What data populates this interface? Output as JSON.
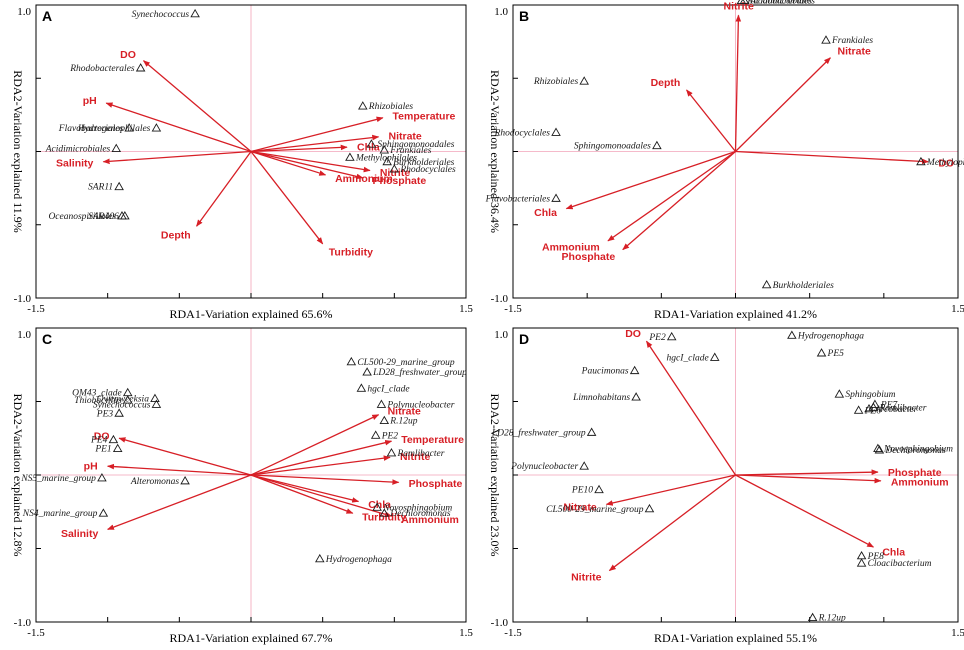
{
  "colors": {
    "vector": "#d71f26",
    "crosshair": "#f2a3b8",
    "frame": "#000000",
    "species": "#1a1a1a"
  },
  "chart_data": [
    {
      "type": "scatter",
      "panel_label": "A",
      "xlabel": "RDA1-Variation explained 65.6%",
      "ylabel": "RDA2-Variation explained 11.9%",
      "x_tick_labels": [
        "-1.5",
        "1.5"
      ],
      "y_tick_labels": [
        "1.0",
        "-1.0"
      ],
      "xlim": [
        -1.5,
        1.5
      ],
      "ylim": [
        -1.0,
        1.0
      ],
      "vectors": [
        {
          "label": "DO",
          "x": -0.75,
          "y": 0.62
        },
        {
          "label": "pH",
          "x": -1.01,
          "y": 0.33
        },
        {
          "label": "Salinity",
          "x": -1.03,
          "y": -0.07
        },
        {
          "label": "Depth",
          "x": -0.38,
          "y": -0.51
        },
        {
          "label": "Turbidity",
          "x": 0.5,
          "y": -0.63
        },
        {
          "label": "Ammonium",
          "x": 0.52,
          "y": -0.16
        },
        {
          "label": "Phosphate",
          "x": 0.78,
          "y": -0.18
        },
        {
          "label": "Nitrite",
          "x": 0.83,
          "y": -0.13
        },
        {
          "label": "Chla",
          "x": 0.67,
          "y": 0.03
        },
        {
          "label": "Nitrate",
          "x": 0.89,
          "y": 0.1
        },
        {
          "label": "Temperature",
          "x": 0.92,
          "y": 0.23
        }
      ],
      "species": [
        {
          "label": "Synechococcus",
          "x": -0.39,
          "y": 0.94
        },
        {
          "label": "Rhodobacterales",
          "x": -0.77,
          "y": 0.57
        },
        {
          "label": "Flavobacteriales",
          "x": -0.85,
          "y": 0.16
        },
        {
          "label": "Hydrogenophilales",
          "x": -0.66,
          "y": 0.16
        },
        {
          "label": "Acidimicrobiales",
          "x": -0.94,
          "y": 0.02
        },
        {
          "label": "SAR11",
          "x": -0.92,
          "y": -0.24
        },
        {
          "label": "Oceanospirillales",
          "x": -0.9,
          "y": -0.44
        },
        {
          "label": "SAR406",
          "x": -0.88,
          "y": -0.44
        },
        {
          "label": "Rhizobiales",
          "x": 0.78,
          "y": 0.31
        },
        {
          "label": "Sphingomonoadales",
          "x": 0.84,
          "y": 0.05
        },
        {
          "label": "Frankiales",
          "x": 0.93,
          "y": 0.01
        },
        {
          "label": "Methylophilales",
          "x": 0.69,
          "y": -0.04
        },
        {
          "label": "Burkholderiales",
          "x": 0.95,
          "y": -0.07
        },
        {
          "label": "Rhodocyclales",
          "x": 1.0,
          "y": -0.12
        }
      ]
    },
    {
      "type": "scatter",
      "panel_label": "B",
      "xlabel": "RDA1-Variation explained 41.2%",
      "ylabel": "RDA2-Variation explained 36.4%",
      "x_tick_labels": [
        "-1.5",
        "1.5"
      ],
      "y_tick_labels": [
        "1.0",
        "-1.0"
      ],
      "xlim": [
        -1.5,
        1.5
      ],
      "ylim": [
        -1.0,
        1.0
      ],
      "vectors": [
        {
          "label": "Nitrite",
          "x": 0.02,
          "y": 0.93
        },
        {
          "label": "Nitrate",
          "x": 0.64,
          "y": 0.64
        },
        {
          "label": "Depth",
          "x": -0.33,
          "y": 0.42
        },
        {
          "label": "DO",
          "x": 1.3,
          "y": -0.07
        },
        {
          "label": "Chla",
          "x": -1.14,
          "y": -0.39
        },
        {
          "label": "Ammonium",
          "x": -0.86,
          "y": -0.61
        },
        {
          "label": "Phosphate",
          "x": -0.76,
          "y": -0.67
        }
      ],
      "species": [
        {
          "label": "Rhodobacterales",
          "x": 0.04,
          "y": 1.03
        },
        {
          "label": "Acidimicrobiales",
          "x": 0.06,
          "y": 1.03
        },
        {
          "label": "Frankiales",
          "x": 0.61,
          "y": 0.76
        },
        {
          "label": "Rhizobiales",
          "x": -1.02,
          "y": 0.48
        },
        {
          "label": "Rhodocyclales",
          "x": -1.21,
          "y": 0.13
        },
        {
          "label": "Sphingomonoadales",
          "x": -0.53,
          "y": 0.04
        },
        {
          "label": "Methylophilales",
          "x": 1.25,
          "y": -0.07
        },
        {
          "label": "Flavobacteriales",
          "x": -1.21,
          "y": -0.32
        },
        {
          "label": "Burkholderiales",
          "x": 0.21,
          "y": -0.91
        }
      ]
    },
    {
      "type": "scatter",
      "panel_label": "C",
      "xlabel": "RDA1-Variation explained 67.7%",
      "ylabel": "RDA2-Variation explained 12.8%",
      "x_tick_labels": [
        "-1.5",
        "1.5"
      ],
      "y_tick_labels": [
        "1.0",
        "-1.0"
      ],
      "xlim": [
        -1.5,
        1.5
      ],
      "ylim": [
        -1.0,
        1.0
      ],
      "vectors": [
        {
          "label": "DO",
          "x": -0.92,
          "y": 0.25
        },
        {
          "label": "pH",
          "x": -1.0,
          "y": 0.06
        },
        {
          "label": "Salinity",
          "x": -1.0,
          "y": -0.37
        },
        {
          "label": "Nitrate",
          "x": 0.89,
          "y": 0.41
        },
        {
          "label": "Temperature",
          "x": 0.98,
          "y": 0.23
        },
        {
          "label": "Nitrite",
          "x": 0.97,
          "y": 0.12
        },
        {
          "label": "Phosphate",
          "x": 1.03,
          "y": -0.05
        },
        {
          "label": "Chla",
          "x": 0.75,
          "y": -0.18
        },
        {
          "label": "Turbidity",
          "x": 0.71,
          "y": -0.26
        },
        {
          "label": "Ammonium",
          "x": 0.98,
          "y": -0.28
        }
      ],
      "species": [
        {
          "label": "OM43_clade",
          "x": -0.86,
          "y": 0.56
        },
        {
          "label": "Thiobacillus",
          "x": -0.86,
          "y": 0.51
        },
        {
          "label": "Owenweeksia",
          "x": -0.67,
          "y": 0.52
        },
        {
          "label": "Synechococcus",
          "x": -0.66,
          "y": 0.48
        },
        {
          "label": "PE3",
          "x": -0.92,
          "y": 0.42
        },
        {
          "label": "PE4",
          "x": -0.96,
          "y": 0.24
        },
        {
          "label": "PE1",
          "x": -0.93,
          "y": 0.18
        },
        {
          "label": "NS5_marine_group",
          "x": -1.04,
          "y": -0.02
        },
        {
          "label": "Alteromonas",
          "x": -0.46,
          "y": -0.04
        },
        {
          "label": "NS4_marine_group",
          "x": -1.03,
          "y": -0.26
        },
        {
          "label": "CL500-29_marine_group",
          "x": 0.7,
          "y": 0.77
        },
        {
          "label": "LD28_freshwater_group",
          "x": 0.81,
          "y": 0.7
        },
        {
          "label": "hgcI_clade",
          "x": 0.77,
          "y": 0.59
        },
        {
          "label": "Polynucleobacter",
          "x": 0.91,
          "y": 0.48
        },
        {
          "label": "R.12up",
          "x": 0.93,
          "y": 0.37
        },
        {
          "label": "PE2",
          "x": 0.87,
          "y": 0.27
        },
        {
          "label": "Ramlibacter",
          "x": 0.98,
          "y": 0.15
        },
        {
          "label": "Novosphingobium",
          "x": 0.88,
          "y": -0.22
        },
        {
          "label": "Dechloromonas",
          "x": 0.93,
          "y": -0.26
        },
        {
          "label": "Hydrogenophaga",
          "x": 0.48,
          "y": -0.57
        }
      ]
    },
    {
      "type": "scatter",
      "panel_label": "D",
      "xlabel": "RDA1-Variation explained 55.1%",
      "ylabel": "RDA2-Variation explained 23.0%",
      "x_tick_labels": [
        "-1.5",
        "1.5"
      ],
      "y_tick_labels": [
        "1.0",
        "-1.0"
      ],
      "xlim": [
        -1.5,
        1.5
      ],
      "ylim": [
        -1.0,
        1.0
      ],
      "vectors": [
        {
          "label": "DO",
          "x": -0.6,
          "y": 0.91
        },
        {
          "label": "Phosphate",
          "x": 0.96,
          "y": 0.02
        },
        {
          "label": "Ammonium",
          "x": 0.98,
          "y": -0.04
        },
        {
          "label": "Chla",
          "x": 0.93,
          "y": -0.49
        },
        {
          "label": "Nitrate",
          "x": -0.87,
          "y": -0.2
        },
        {
          "label": "Nitrite",
          "x": -0.85,
          "y": -0.65
        }
      ],
      "species": [
        {
          "label": "PE2",
          "x": -0.43,
          "y": 0.94
        },
        {
          "label": "hgcI_clade",
          "x": -0.14,
          "y": 0.8
        },
        {
          "label": "Hydrogenophaga",
          "x": 0.38,
          "y": 0.95
        },
        {
          "label": "PE5",
          "x": 0.58,
          "y": 0.83
        },
        {
          "label": "Paucimonas",
          "x": -0.68,
          "y": 0.71
        },
        {
          "label": "Limnohabitans",
          "x": -0.67,
          "y": 0.53
        },
        {
          "label": "Sphingobium",
          "x": 0.7,
          "y": 0.55
        },
        {
          "label": "PE7",
          "x": 0.94,
          "y": 0.48
        },
        {
          "label": "PE6",
          "x": 0.83,
          "y": 0.44
        },
        {
          "label": "Arcobacter",
          "x": 0.9,
          "y": 0.45
        },
        {
          "label": "Ramlibacter",
          "x": 0.93,
          "y": 0.46
        },
        {
          "label": "Novosphingobium",
          "x": 0.96,
          "y": 0.18
        },
        {
          "label": "Dechloromonas",
          "x": 0.97,
          "y": 0.17
        },
        {
          "label": "LD28_freshwater_group",
          "x": -0.97,
          "y": 0.29
        },
        {
          "label": "Polynucleobacter",
          "x": -1.02,
          "y": 0.06
        },
        {
          "label": "PE10",
          "x": -0.92,
          "y": -0.1
        },
        {
          "label": "CL500-29_marine_group",
          "x": -0.58,
          "y": -0.23
        },
        {
          "label": "PE8",
          "x": 0.85,
          "y": -0.55
        },
        {
          "label": "Cloacibacterium",
          "x": 0.85,
          "y": -0.6
        },
        {
          "label": "R.12up",
          "x": 0.52,
          "y": -0.97
        }
      ]
    }
  ]
}
